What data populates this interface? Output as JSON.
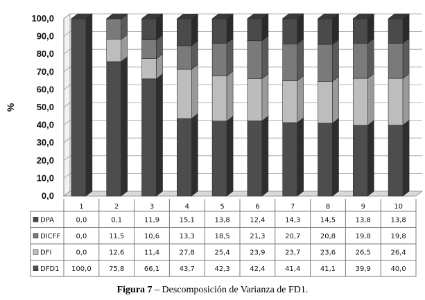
{
  "chart_data": {
    "type": "bar",
    "stacked": true,
    "three_d": true,
    "ylabel": "%",
    "ylim": [
      0,
      100
    ],
    "ytick_step": 10,
    "ytick_labels": [
      "0,0",
      "10,0",
      "20,0",
      "30,0",
      "40,0",
      "50,0",
      "60,0",
      "70,0",
      "80,0",
      "90,0",
      "100,0"
    ],
    "grid": true,
    "legend": "data-table-left",
    "categories": [
      "1",
      "2",
      "3",
      "4",
      "5",
      "6",
      "7",
      "8",
      "9",
      "10"
    ],
    "series": [
      {
        "name": "DFD1",
        "color": "#4d4d4d",
        "top": "#3a3a3a",
        "side": "#2e2e2e",
        "values": [
          100.0,
          75.8,
          66.1,
          43.7,
          42.3,
          42.4,
          41.4,
          41.1,
          39.9,
          40.0
        ]
      },
      {
        "name": "DFI",
        "color": "#bdbdbd",
        "top": "#a8a8a8",
        "side": "#9a9a9a",
        "values": [
          0.0,
          12.6,
          11.4,
          27.8,
          25.4,
          23.9,
          23.7,
          23.6,
          26.5,
          26.4
        ]
      },
      {
        "name": "DICFF",
        "color": "#7a7a7a",
        "top": "#676767",
        "side": "#5a5a5a",
        "values": [
          0.0,
          11.5,
          10.6,
          13.3,
          18.5,
          21.3,
          20.7,
          20.8,
          19.8,
          19.8
        ]
      },
      {
        "name": "DPA",
        "color": "#4a4a4a",
        "top": "#393939",
        "side": "#2a2a2a",
        "values": [
          0.0,
          0.1,
          11.9,
          15.1,
          13.8,
          12.4,
          14.3,
          14.5,
          13.8,
          13.8
        ]
      }
    ],
    "table_rows": [
      {
        "name": "DPA",
        "cells": [
          "0,0",
          "0,1",
          "11,9",
          "15,1",
          "13,8",
          "12,4",
          "14,3",
          "14,5",
          "13,8",
          "13,8"
        ]
      },
      {
        "name": "DICFF",
        "cells": [
          "0,0",
          "11,5",
          "10,6",
          "13,3",
          "18,5",
          "21,3",
          "20,7",
          "20,8",
          "19,8",
          "19,8"
        ]
      },
      {
        "name": "DFI",
        "cells": [
          "0,0",
          "12,6",
          "11,4",
          "27,8",
          "25,4",
          "23,9",
          "23,7",
          "23,6",
          "26,5",
          "26,4"
        ]
      },
      {
        "name": "DFD1",
        "cells": [
          "100,0",
          "75,8",
          "66,1",
          "43,7",
          "42,3",
          "42,4",
          "41,4",
          "41,1",
          "39,9",
          "40,0"
        ]
      }
    ]
  },
  "caption": {
    "label": "Figura 7",
    "text": " – Descomposición de Varianza de FD1."
  }
}
